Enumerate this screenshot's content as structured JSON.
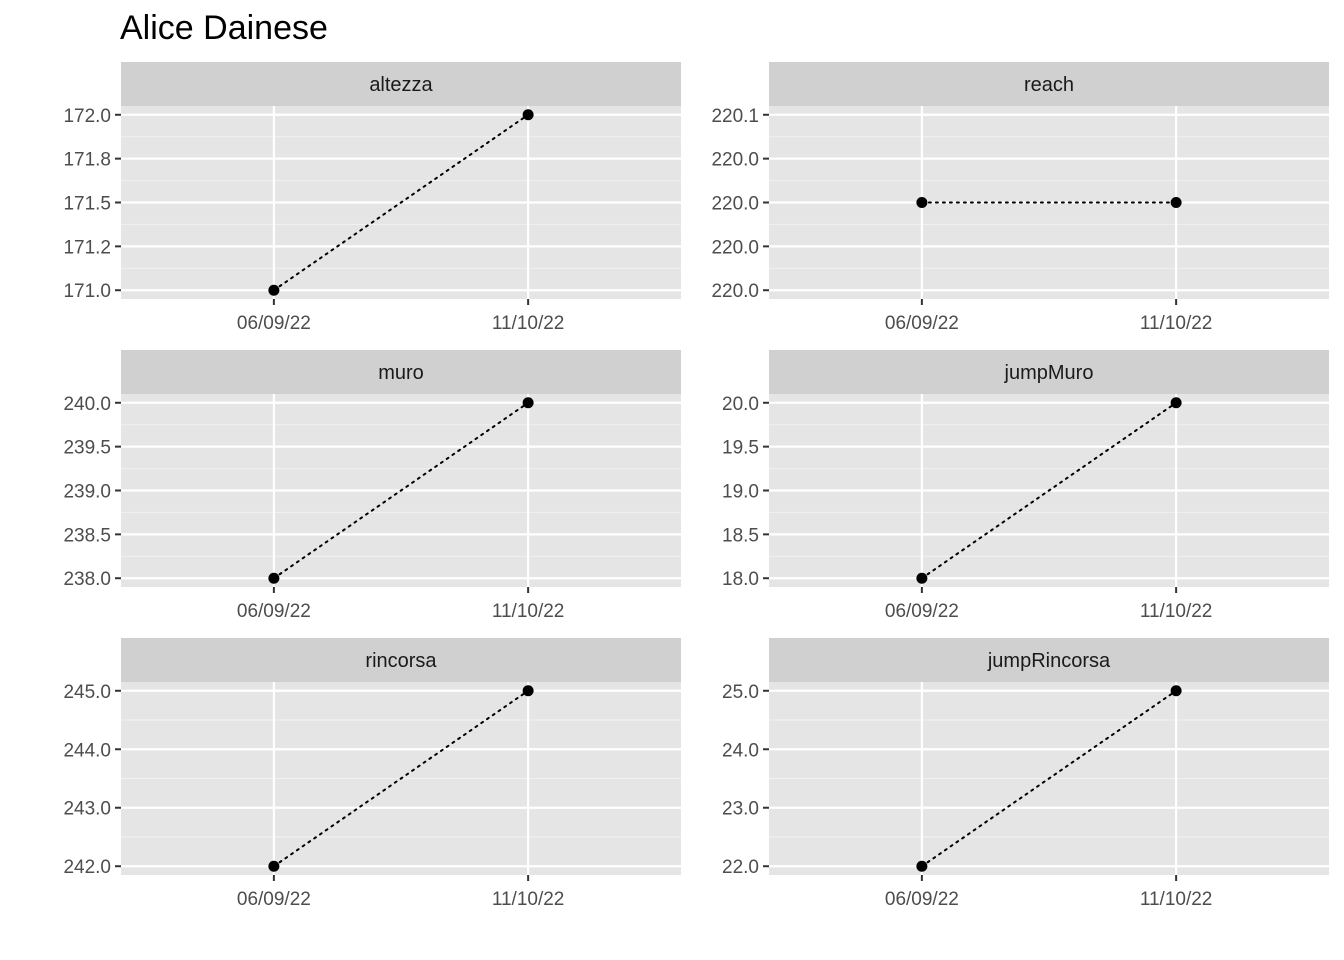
{
  "title": "Alice Dainese",
  "chart_data": {
    "type": "line",
    "title": "Alice Dainese",
    "x": [
      "06/09/22",
      "11/10/22"
    ],
    "line_style": "dotted",
    "point_color": "#000000",
    "panel_background": "#e5e5e5",
    "strip_background": "#d0d0d0",
    "grid": true,
    "facets": [
      {
        "label": "altezza",
        "values": [
          171.0,
          172.0
        ],
        "ylim": [
          170.95,
          172.05
        ],
        "yticks": [
          171.0,
          171.25,
          171.5,
          171.75,
          172.0
        ],
        "ytick_labels": [
          "171.0",
          "171.2",
          "171.5",
          "171.8",
          "172.0"
        ]
      },
      {
        "label": "reach",
        "values": [
          220.0,
          220.0
        ],
        "ylim": [
          219.945,
          220.055
        ],
        "yticks": [
          219.95,
          219.975,
          220.0,
          220.025,
          220.05
        ],
        "ytick_labels": [
          "220.0",
          "220.0",
          "220.0",
          "220.0",
          "220.1"
        ]
      },
      {
        "label": "muro",
        "values": [
          238.0,
          240.0
        ],
        "ylim": [
          237.9,
          240.1
        ],
        "yticks": [
          238.0,
          238.5,
          239.0,
          239.5,
          240.0
        ],
        "ytick_labels": [
          "238.0",
          "238.5",
          "239.0",
          "239.5",
          "240.0"
        ]
      },
      {
        "label": "jumpMuro",
        "values": [
          18.0,
          20.0
        ],
        "ylim": [
          17.9,
          20.1
        ],
        "yticks": [
          18.0,
          18.5,
          19.0,
          19.5,
          20.0
        ],
        "ytick_labels": [
          "18.0",
          "18.5",
          "19.0",
          "19.5",
          "20.0"
        ]
      },
      {
        "label": "rincorsa",
        "values": [
          242.0,
          245.0
        ],
        "ylim": [
          241.85,
          245.15
        ],
        "yticks": [
          242.0,
          243.0,
          244.0,
          245.0
        ],
        "ytick_labels": [
          "242.0",
          "243.0",
          "244.0",
          "245.0"
        ]
      },
      {
        "label": "jumpRincorsa",
        "values": [
          22.0,
          25.0
        ],
        "ylim": [
          21.85,
          25.15
        ],
        "yticks": [
          22.0,
          23.0,
          24.0,
          25.0
        ],
        "ytick_labels": [
          "22.0",
          "23.0",
          "24.0",
          "25.0"
        ]
      }
    ]
  }
}
